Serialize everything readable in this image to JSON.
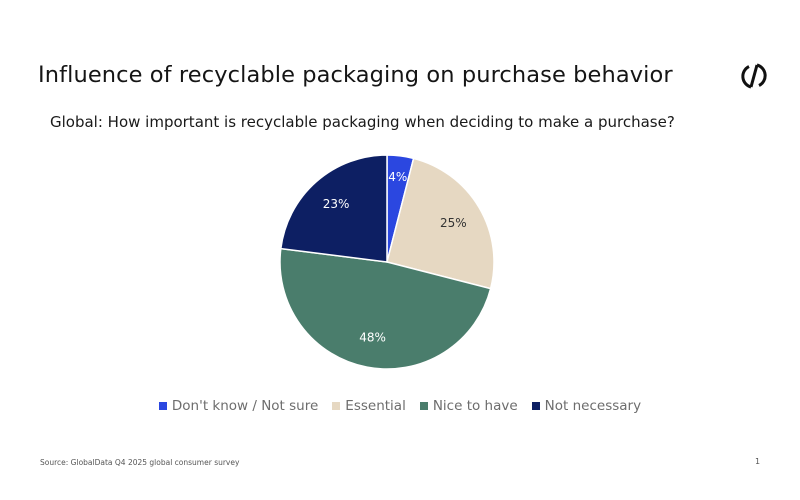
{
  "slide": {
    "title": "Influence of recyclable packaging on purchase behavior",
    "subtitle": "Global: How important is recyclable packaging when deciding to make a purchase?",
    "source": "Source: GlobalData Q4 2025 global consumer survey",
    "page_number": "1",
    "logo_icon": "circle-slash-logo-icon"
  },
  "chart_data": {
    "type": "pie",
    "title": "Global: How important is recyclable packaging when deciding to make a purchase?",
    "start_angle_deg": 0,
    "direction": "clockwise",
    "slices": [
      {
        "label": "Don't know / Not sure",
        "value": 4,
        "display": "4%",
        "color": "#2b47e0",
        "label_color": "#ffffff"
      },
      {
        "label": "Essential",
        "value": 25,
        "display": "25%",
        "color": "#e6d8c2",
        "label_color": "#333333"
      },
      {
        "label": "Nice to have",
        "value": 48,
        "display": "48%",
        "color": "#4a7d6c",
        "label_color": "#ffffff"
      },
      {
        "label": "Not necessary",
        "value": 23,
        "display": "23%",
        "color": "#0d1f63",
        "label_color": "#ffffff"
      }
    ],
    "legend_position": "bottom"
  }
}
